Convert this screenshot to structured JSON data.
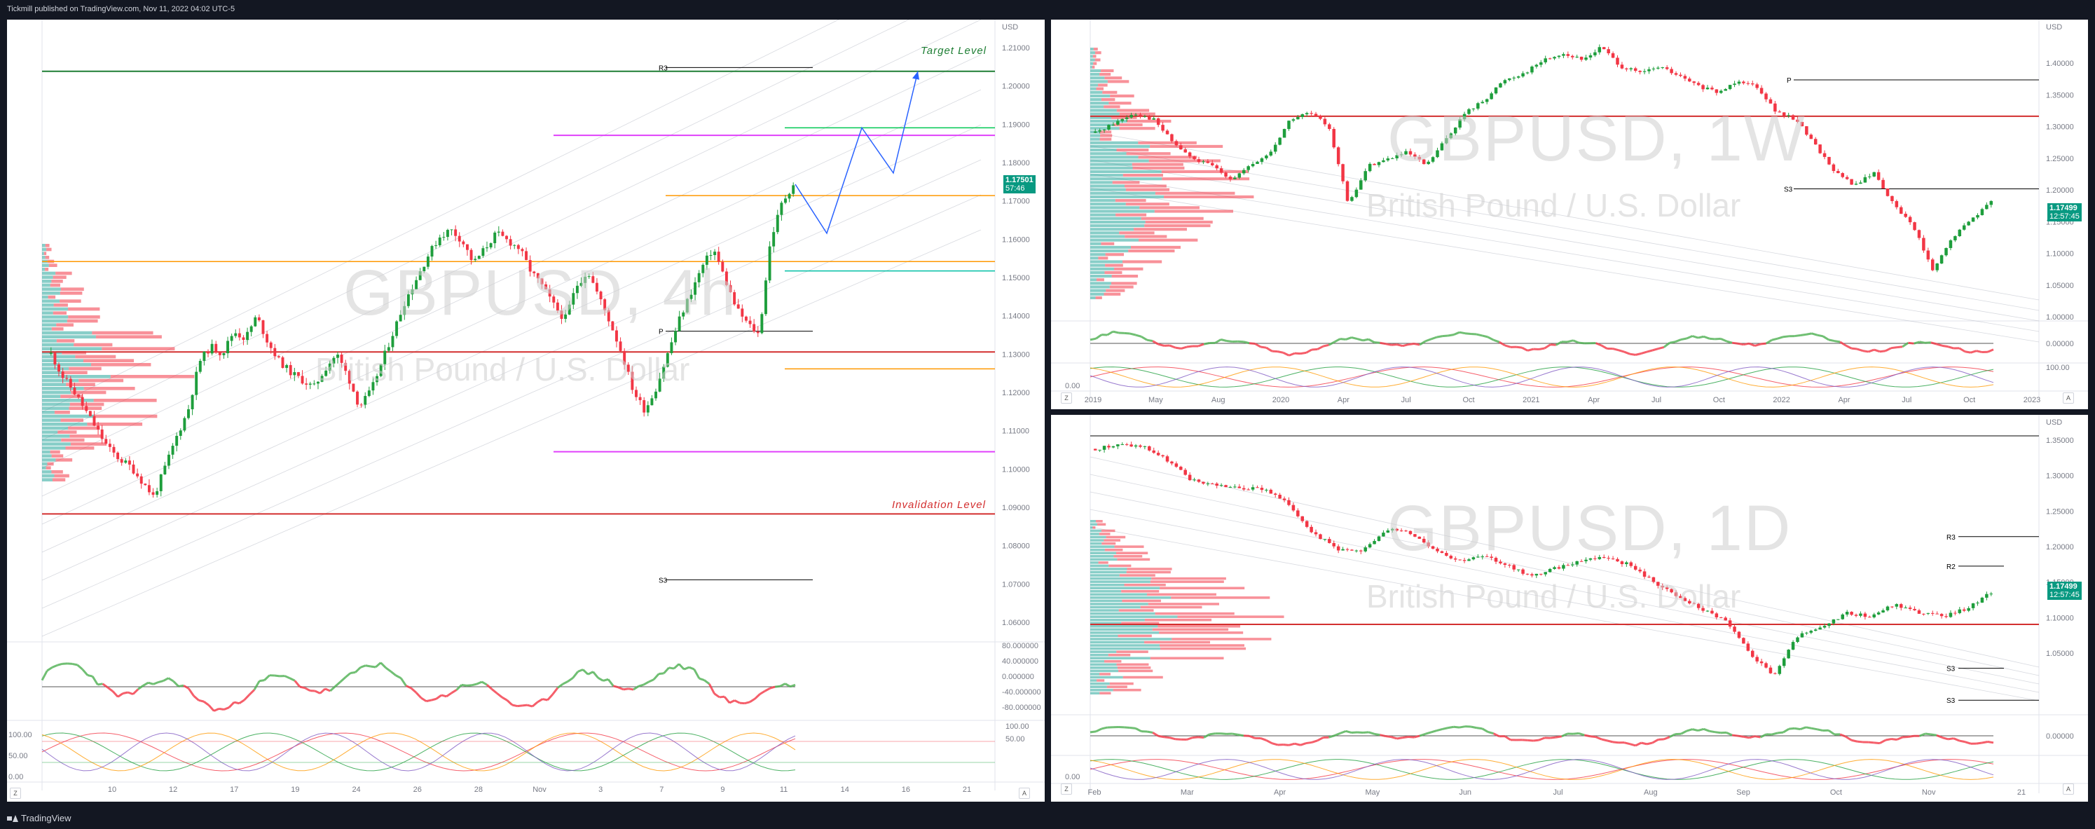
{
  "header": {
    "publisher_text": "Tickmill published on TradingView.com, Nov 11, 2022 04:02 UTC-5"
  },
  "footer": {
    "brand": "TradingView"
  },
  "colors": {
    "up": "#1e9e3c",
    "down": "#f23645",
    "target": "#1e7e34",
    "invalidation": "#d32f2f",
    "projection": "#2962ff",
    "price_tag": "#089981"
  },
  "panels": {
    "h4": {
      "watermark_symbol": "GBPUSD, 4h",
      "watermark_name": "British Pound / U.S. Dollar",
      "currency": "USD",
      "target_label": "Target  Level",
      "invalidation_label": "Invalidation Level",
      "pivot_labels": {
        "r3": "R3",
        "s3": "S3",
        "p": "P"
      },
      "price_tag": {
        "price": "1.17501",
        "time": "57:46"
      },
      "price_ticks": [
        "1.21000",
        "1.20000",
        "1.19000",
        "1.18000",
        "1.17000",
        "1.16000",
        "1.15000",
        "1.14000",
        "1.13000",
        "1.12000",
        "1.11000",
        "1.10000",
        "1.09000",
        "1.08000",
        "1.07000",
        "1.06000"
      ],
      "osc1_ticks": [
        "80.000000",
        "40.000000",
        "0.000000",
        "-40.000000",
        "-80.000000"
      ],
      "osc2_ticks": [
        "100.00",
        "50.00",
        "0.00"
      ],
      "osc2_right_ticks": [
        "100.00",
        "50.00"
      ],
      "time_ticks": [
        "10",
        "12",
        "17",
        "19",
        "24",
        "26",
        "28",
        "Nov",
        "3",
        "7",
        "9",
        "11",
        "14",
        "16",
        "21"
      ],
      "corner_z": "Z",
      "corner_a": "A"
    },
    "w1": {
      "watermark_symbol": "GBPUSD, 1W",
      "watermark_name": "British Pound / U.S. Dollar",
      "currency": "USD",
      "pivot_labels": {
        "p": "P",
        "s3": "S3"
      },
      "price_tag": {
        "price": "1.17499",
        "time": "12:57:45"
      },
      "price_ticks": [
        "1.40000",
        "1.35000",
        "1.30000",
        "1.25000",
        "1.20000",
        "1.15000",
        "1.10000",
        "1.05000",
        "1.00000"
      ],
      "osc1_ticks": [
        "0.00000"
      ],
      "osc2_ticks": [
        "100.00",
        "0.00"
      ],
      "time_ticks": [
        "2019",
        "May",
        "Aug",
        "2020",
        "Apr",
        "Jul",
        "Oct",
        "2021",
        "Apr",
        "Jul",
        "Oct",
        "2022",
        "Apr",
        "Jul",
        "Oct",
        "2023"
      ],
      "corner_z": "Z",
      "corner_a": "A"
    },
    "d1": {
      "watermark_symbol": "GBPUSD, 1D",
      "watermark_name": "British Pound / U.S. Dollar",
      "currency": "USD",
      "pivot_labels": {
        "r3": "R3",
        "r2": "R2",
        "s3": "S3",
        "s3b": "S3"
      },
      "price_tag": {
        "price": "1.17499",
        "time": "12:57:45"
      },
      "price_ticks": [
        "1.35000",
        "1.30000",
        "1.25000",
        "1.20000",
        "1.15000",
        "1.10000",
        "1.05000"
      ],
      "osc1_ticks": [
        "0.00000"
      ],
      "osc2_ticks": [
        "0.00"
      ],
      "time_ticks": [
        "Feb",
        "Mar",
        "Apr",
        "May",
        "Jun",
        "Jul",
        "Aug",
        "Sep",
        "Oct",
        "Nov",
        "21"
      ],
      "corner_z": "Z",
      "corner_a": "A"
    }
  },
  "chart_data": [
    {
      "type": "candlestick",
      "symbol": "GBPUSD",
      "timeframe": "4h",
      "ylim": [
        1.055,
        1.215
      ],
      "close_path": [
        1.13,
        1.124,
        1.12,
        1.115,
        1.11,
        1.105,
        1.102,
        1.1,
        1.096,
        1.092,
        1.1,
        1.108,
        1.115,
        1.128,
        1.132,
        1.13,
        1.136,
        1.134,
        1.14,
        1.133,
        1.128,
        1.125,
        1.123,
        1.121,
        1.126,
        1.13,
        1.124,
        1.116,
        1.12,
        1.128,
        1.136,
        1.144,
        1.15,
        1.156,
        1.161,
        1.163,
        1.16,
        1.154,
        1.158,
        1.162,
        1.16,
        1.158,
        1.152,
        1.148,
        1.143,
        1.139,
        1.148,
        1.152,
        1.145,
        1.138,
        1.13,
        1.12,
        1.115,
        1.121,
        1.13,
        1.139,
        1.146,
        1.153,
        1.158,
        1.15,
        1.142,
        1.138,
        1.135,
        1.16,
        1.17,
        1.175
      ],
      "projection_path": [
        1.175,
        1.162,
        1.19,
        1.178,
        1.205
      ],
      "levels": {
        "target": 1.205,
        "invalidation": 1.0875,
        "r3": 1.206,
        "s3": 1.07,
        "p": 1.136
      }
    },
    {
      "type": "candlestick",
      "symbol": "GBPUSD",
      "timeframe": "1W",
      "ylim": [
        0.995,
        1.43
      ],
      "close_path": [
        1.28,
        1.295,
        1.31,
        1.3,
        1.265,
        1.24,
        1.23,
        1.21,
        1.23,
        1.25,
        1.3,
        1.31,
        1.29,
        1.17,
        1.23,
        1.24,
        1.25,
        1.23,
        1.27,
        1.31,
        1.33,
        1.36,
        1.37,
        1.39,
        1.4,
        1.39,
        1.41,
        1.38,
        1.37,
        1.38,
        1.365,
        1.35,
        1.34,
        1.36,
        1.35,
        1.31,
        1.3,
        1.26,
        1.22,
        1.2,
        1.22,
        1.17,
        1.14,
        1.07,
        1.12,
        1.15,
        1.175
      ],
      "levels": {
        "p": 1.36,
        "s3": 1.195,
        "horizontal": 1.305
      }
    },
    {
      "type": "candlestick",
      "symbol": "GBPUSD",
      "timeframe": "1D",
      "ylim": [
        1.02,
        1.38
      ],
      "close_path": [
        1.355,
        1.36,
        1.358,
        1.34,
        1.315,
        1.31,
        1.305,
        1.305,
        1.285,
        1.25,
        1.23,
        1.225,
        1.255,
        1.25,
        1.23,
        1.215,
        1.22,
        1.21,
        1.195,
        1.205,
        1.215,
        1.22,
        1.21,
        1.19,
        1.17,
        1.155,
        1.14,
        1.1,
        1.07,
        1.12,
        1.13,
        1.15,
        1.145,
        1.16,
        1.15,
        1.145,
        1.155,
        1.175
      ],
      "levels": {
        "r3": 1.245,
        "r2": 1.208,
        "s3": 1.08,
        "s3b": 1.04,
        "horizontal": 1.135
      }
    }
  ]
}
